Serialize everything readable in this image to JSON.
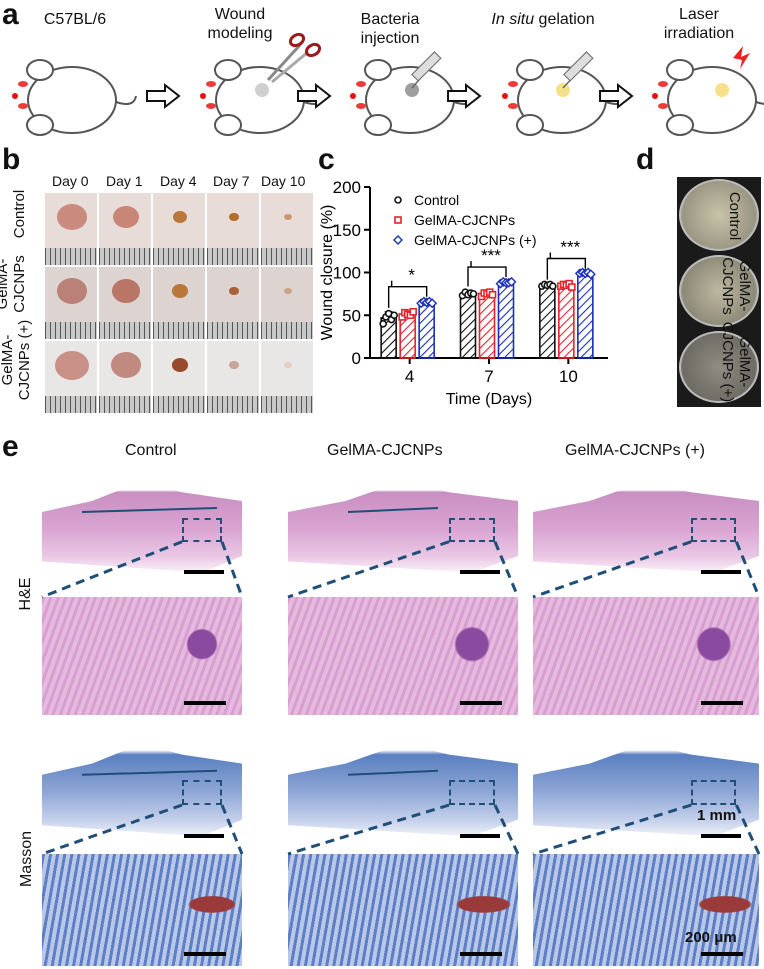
{
  "panels": {
    "a": "a",
    "b": "b",
    "c": "c",
    "d": "d",
    "e": "e"
  },
  "panel_a": {
    "steps": [
      {
        "line1": "C57BL/6",
        "line2": ""
      },
      {
        "line1": "Wound",
        "line2": "modeling"
      },
      {
        "line1": "Bacteria",
        "line2": "injection"
      },
      {
        "line1_italic": "In situ",
        "line1_rest": " gelation",
        "line2": ""
      },
      {
        "line1": "Laser",
        "line2": "irradiation"
      }
    ]
  },
  "panel_b": {
    "days": [
      "Day 0",
      "Day 1",
      "Day 4",
      "Day 7",
      "Day 10"
    ],
    "rows": [
      {
        "line1": "Control",
        "line2": ""
      },
      {
        "line1": "GelMA-",
        "line2": "CJCNPs"
      },
      {
        "line1": "GelMA-",
        "line2": "CJCNPs (+)"
      }
    ]
  },
  "panel_d": {
    "rows": [
      {
        "line1": "Control",
        "line2": ""
      },
      {
        "line1": "GelMA-",
        "line2": "CJCNPs"
      },
      {
        "line1": "GelMA-",
        "line2": "CJCNPs (+)"
      }
    ]
  },
  "panel_e": {
    "columns": [
      "Control",
      "GelMA-CJCNPs",
      "GelMA-CJCNPs (+)"
    ],
    "rows": [
      "H&E",
      "Masson"
    ],
    "scale_large": "1 mm",
    "scale_small": "200 μm"
  },
  "chart_data": {
    "type": "bar",
    "xlabel": "Time (Days)",
    "ylabel": "Wound closure (%)",
    "categories": [
      "4",
      "7",
      "10"
    ],
    "ylim": [
      0,
      200
    ],
    "yticks": [
      0,
      50,
      100,
      150,
      200
    ],
    "legend_position": "top-left",
    "series": [
      {
        "name": "Control",
        "color": "#111111",
        "marker": "circle",
        "values": [
          47,
          75,
          85
        ],
        "errors": [
          7,
          4,
          2
        ],
        "points": [
          [
            40,
            48,
            52,
            45,
            50
          ],
          [
            73,
            77,
            74,
            76,
            75
          ],
          [
            84,
            86,
            85,
            86,
            84
          ]
        ]
      },
      {
        "name": "GelMA-CJCNPs",
        "color": "#e8222b",
        "marker": "square",
        "values": [
          51,
          75,
          85
        ],
        "errors": [
          4,
          3,
          2
        ],
        "points": [
          [
            48,
            53,
            51,
            50,
            54
          ],
          [
            72,
            76,
            75,
            77,
            74
          ],
          [
            84,
            86,
            85,
            87,
            83
          ]
        ]
      },
      {
        "name": "GelMA-CJCNPs (+)",
        "color": "#1a2fb8",
        "marker": "diamond",
        "values": [
          65,
          88,
          99
        ],
        "errors": [
          2,
          2,
          1
        ],
        "points": [
          [
            64,
            66,
            65,
            66,
            64
          ],
          [
            87,
            89,
            88,
            88,
            89
          ],
          [
            99,
            100,
            99,
            100,
            98
          ]
        ]
      }
    ],
    "significance": [
      "*",
      "***",
      "***"
    ]
  }
}
